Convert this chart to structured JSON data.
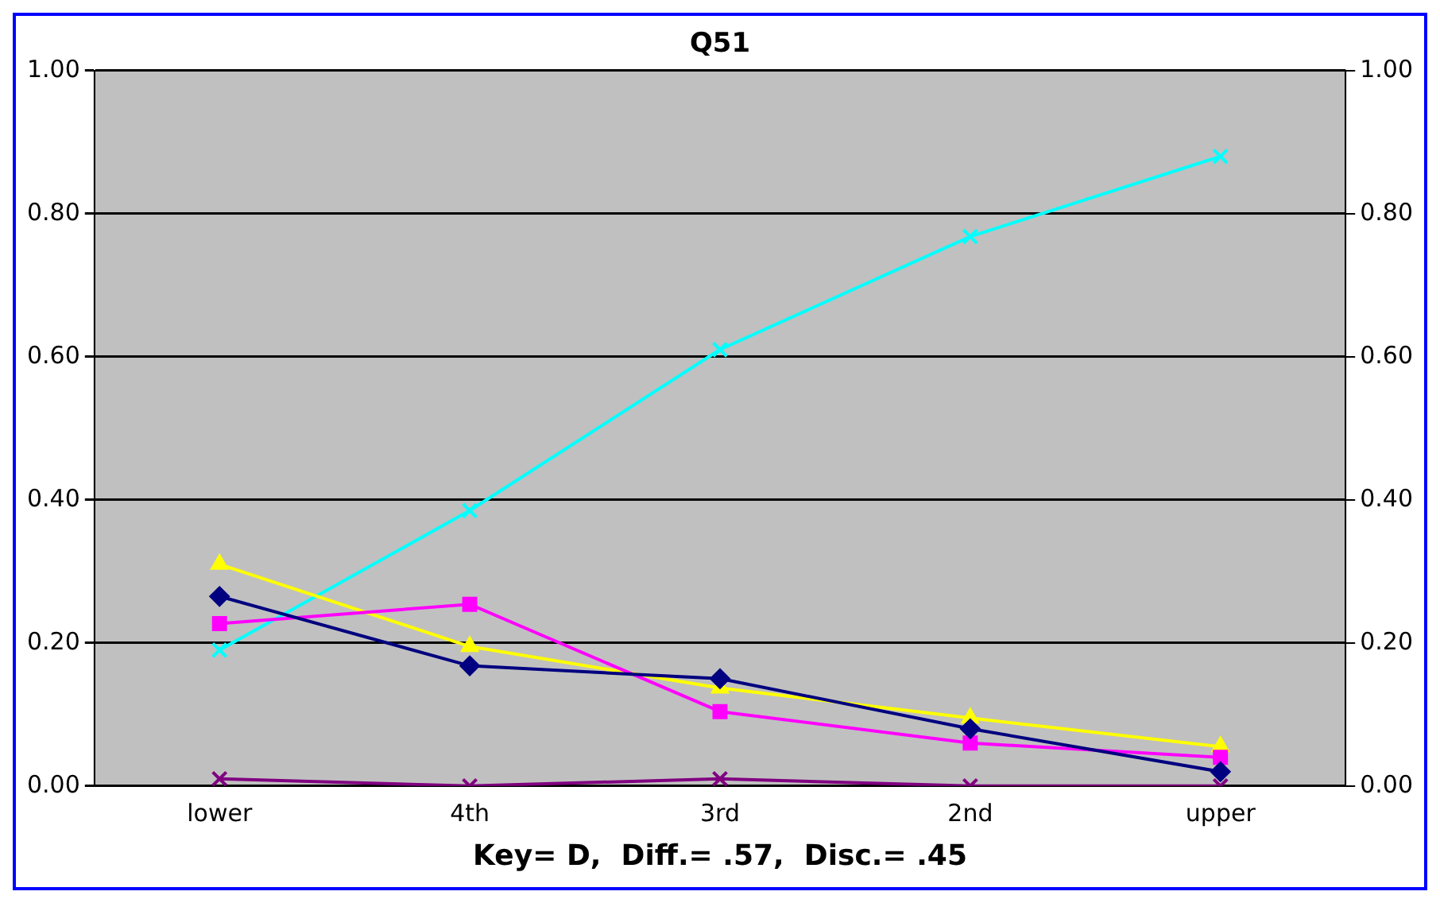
{
  "chart_data": {
    "type": "line",
    "title": "Q51",
    "xlabel": "Key= D,  Diff.= .57,  Disc.= .45",
    "categories": [
      "lower",
      "4th",
      "3rd",
      "2nd",
      "upper"
    ],
    "series": [
      {
        "color": "#000080",
        "marker": "diamond",
        "values": [
          0.265,
          0.168,
          0.15,
          0.08,
          0.02
        ]
      },
      {
        "color": "#ff00ff",
        "marker": "square",
        "values": [
          0.227,
          0.254,
          0.104,
          0.06,
          0.04
        ]
      },
      {
        "color": "#ffff00",
        "marker": "triangle",
        "values": [
          0.31,
          0.195,
          0.137,
          0.095,
          0.055
        ]
      },
      {
        "color": "#00ffff",
        "marker": "cross",
        "values": [
          0.19,
          0.385,
          0.61,
          0.768,
          0.88
        ]
      },
      {
        "color": "#800080",
        "marker": "cross",
        "values": [
          0.01,
          0,
          0.01,
          0,
          0
        ]
      }
    ],
    "ylim": [
      0,
      1
    ],
    "yticks": [
      {
        "value": 0,
        "label": "0.00"
      },
      {
        "value": 0.2,
        "label": "0.20"
      },
      {
        "value": 0.4,
        "label": "0.40"
      },
      {
        "value": 0.6,
        "label": "0.60"
      },
      {
        "value": 0.8,
        "label": "0.80"
      },
      {
        "value": 1,
        "label": "1.00"
      }
    ],
    "y2lim": [
      0,
      1
    ],
    "y2ticks": [
      {
        "value": 0,
        "label": "0.00"
      },
      {
        "value": 0.2,
        "label": "0.20"
      },
      {
        "value": 0.4,
        "label": "0.40"
      },
      {
        "value": 0.6,
        "label": "0.60"
      },
      {
        "value": 0.8,
        "label": "0.80"
      },
      {
        "value": 1,
        "label": "1.00"
      }
    ],
    "grid": "y",
    "legend": false
  }
}
